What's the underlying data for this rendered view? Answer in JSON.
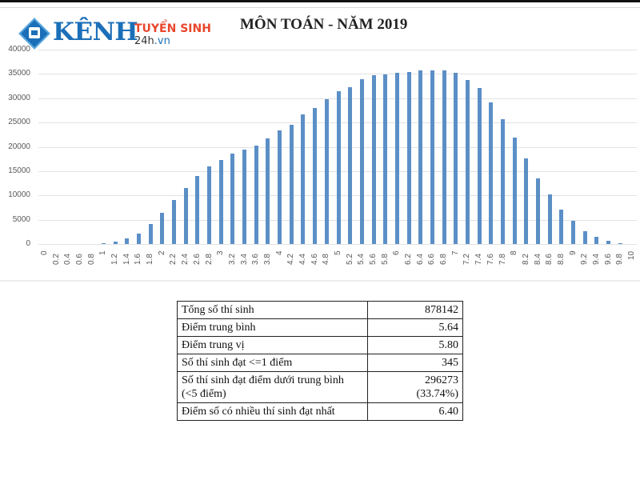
{
  "logo": {
    "brand": "KÊNH",
    "tagline": "TUYỂN SINH",
    "site_prefix": "24h",
    "site_suffix": ".vn"
  },
  "chart_data": {
    "type": "bar",
    "title": "MÔN TOÁN - NĂM 2019",
    "xlabel": "",
    "ylabel": "",
    "ylim": [
      0,
      40000
    ],
    "yticks": [
      0,
      5000,
      10000,
      15000,
      20000,
      25000,
      30000,
      35000,
      40000
    ],
    "grid": true,
    "legend": null,
    "bar_color": "#5b8fc6",
    "categories": [
      "0",
      "0.2",
      "0.4",
      "0.6",
      "0.8",
      "1",
      "1.2",
      "1.4",
      "1.6",
      "1.8",
      "2",
      "2.2",
      "2.4",
      "2.6",
      "2.8",
      "3",
      "3.2",
      "3.4",
      "3.6",
      "3.8",
      "4",
      "4.2",
      "4.4",
      "4.6",
      "4.8",
      "5",
      "5.2",
      "5.4",
      "5.6",
      "5.8",
      "6",
      "6.2",
      "6.4",
      "6.6",
      "6.8",
      "7",
      "7.2",
      "7.4",
      "7.6",
      "7.8",
      "8",
      "8.2",
      "8.4",
      "8.6",
      "8.8",
      "9",
      "9.2",
      "9.4",
      "9.6",
      "9.8",
      "10"
    ],
    "values": [
      0,
      0,
      0,
      0,
      0,
      200,
      500,
      1200,
      2200,
      4100,
      6500,
      9000,
      11500,
      14000,
      15900,
      17300,
      18600,
      19400,
      20300,
      21700,
      23300,
      24600,
      26700,
      28000,
      29800,
      31400,
      32300,
      33900,
      34700,
      34900,
      35300,
      35400,
      35800,
      35800,
      35700,
      35200,
      33800,
      32100,
      29100,
      25700,
      21900,
      17600,
      13500,
      10200,
      7100,
      4700,
      2700,
      1500,
      600,
      150,
      0
    ]
  },
  "stats_table": {
    "rows": [
      {
        "label": "Tổng số thí sinh",
        "value": "878142",
        "value2": ""
      },
      {
        "label": "Điểm trung bình",
        "value": "5.64",
        "value2": ""
      },
      {
        "label": "Điểm trung vị",
        "value": "5.80",
        "value2": ""
      },
      {
        "label": "Số thí sinh đạt <=1 điểm",
        "value": "345",
        "value2": ""
      },
      {
        "label": "Số thí sinh đạt điểm dưới trung bình",
        "label2": "(<5 điểm)",
        "value": "296273",
        "value2": "(33.74%)"
      },
      {
        "label": "Điểm số có nhiều thí sinh đạt nhất",
        "value": "6.40",
        "value2": ""
      }
    ]
  }
}
